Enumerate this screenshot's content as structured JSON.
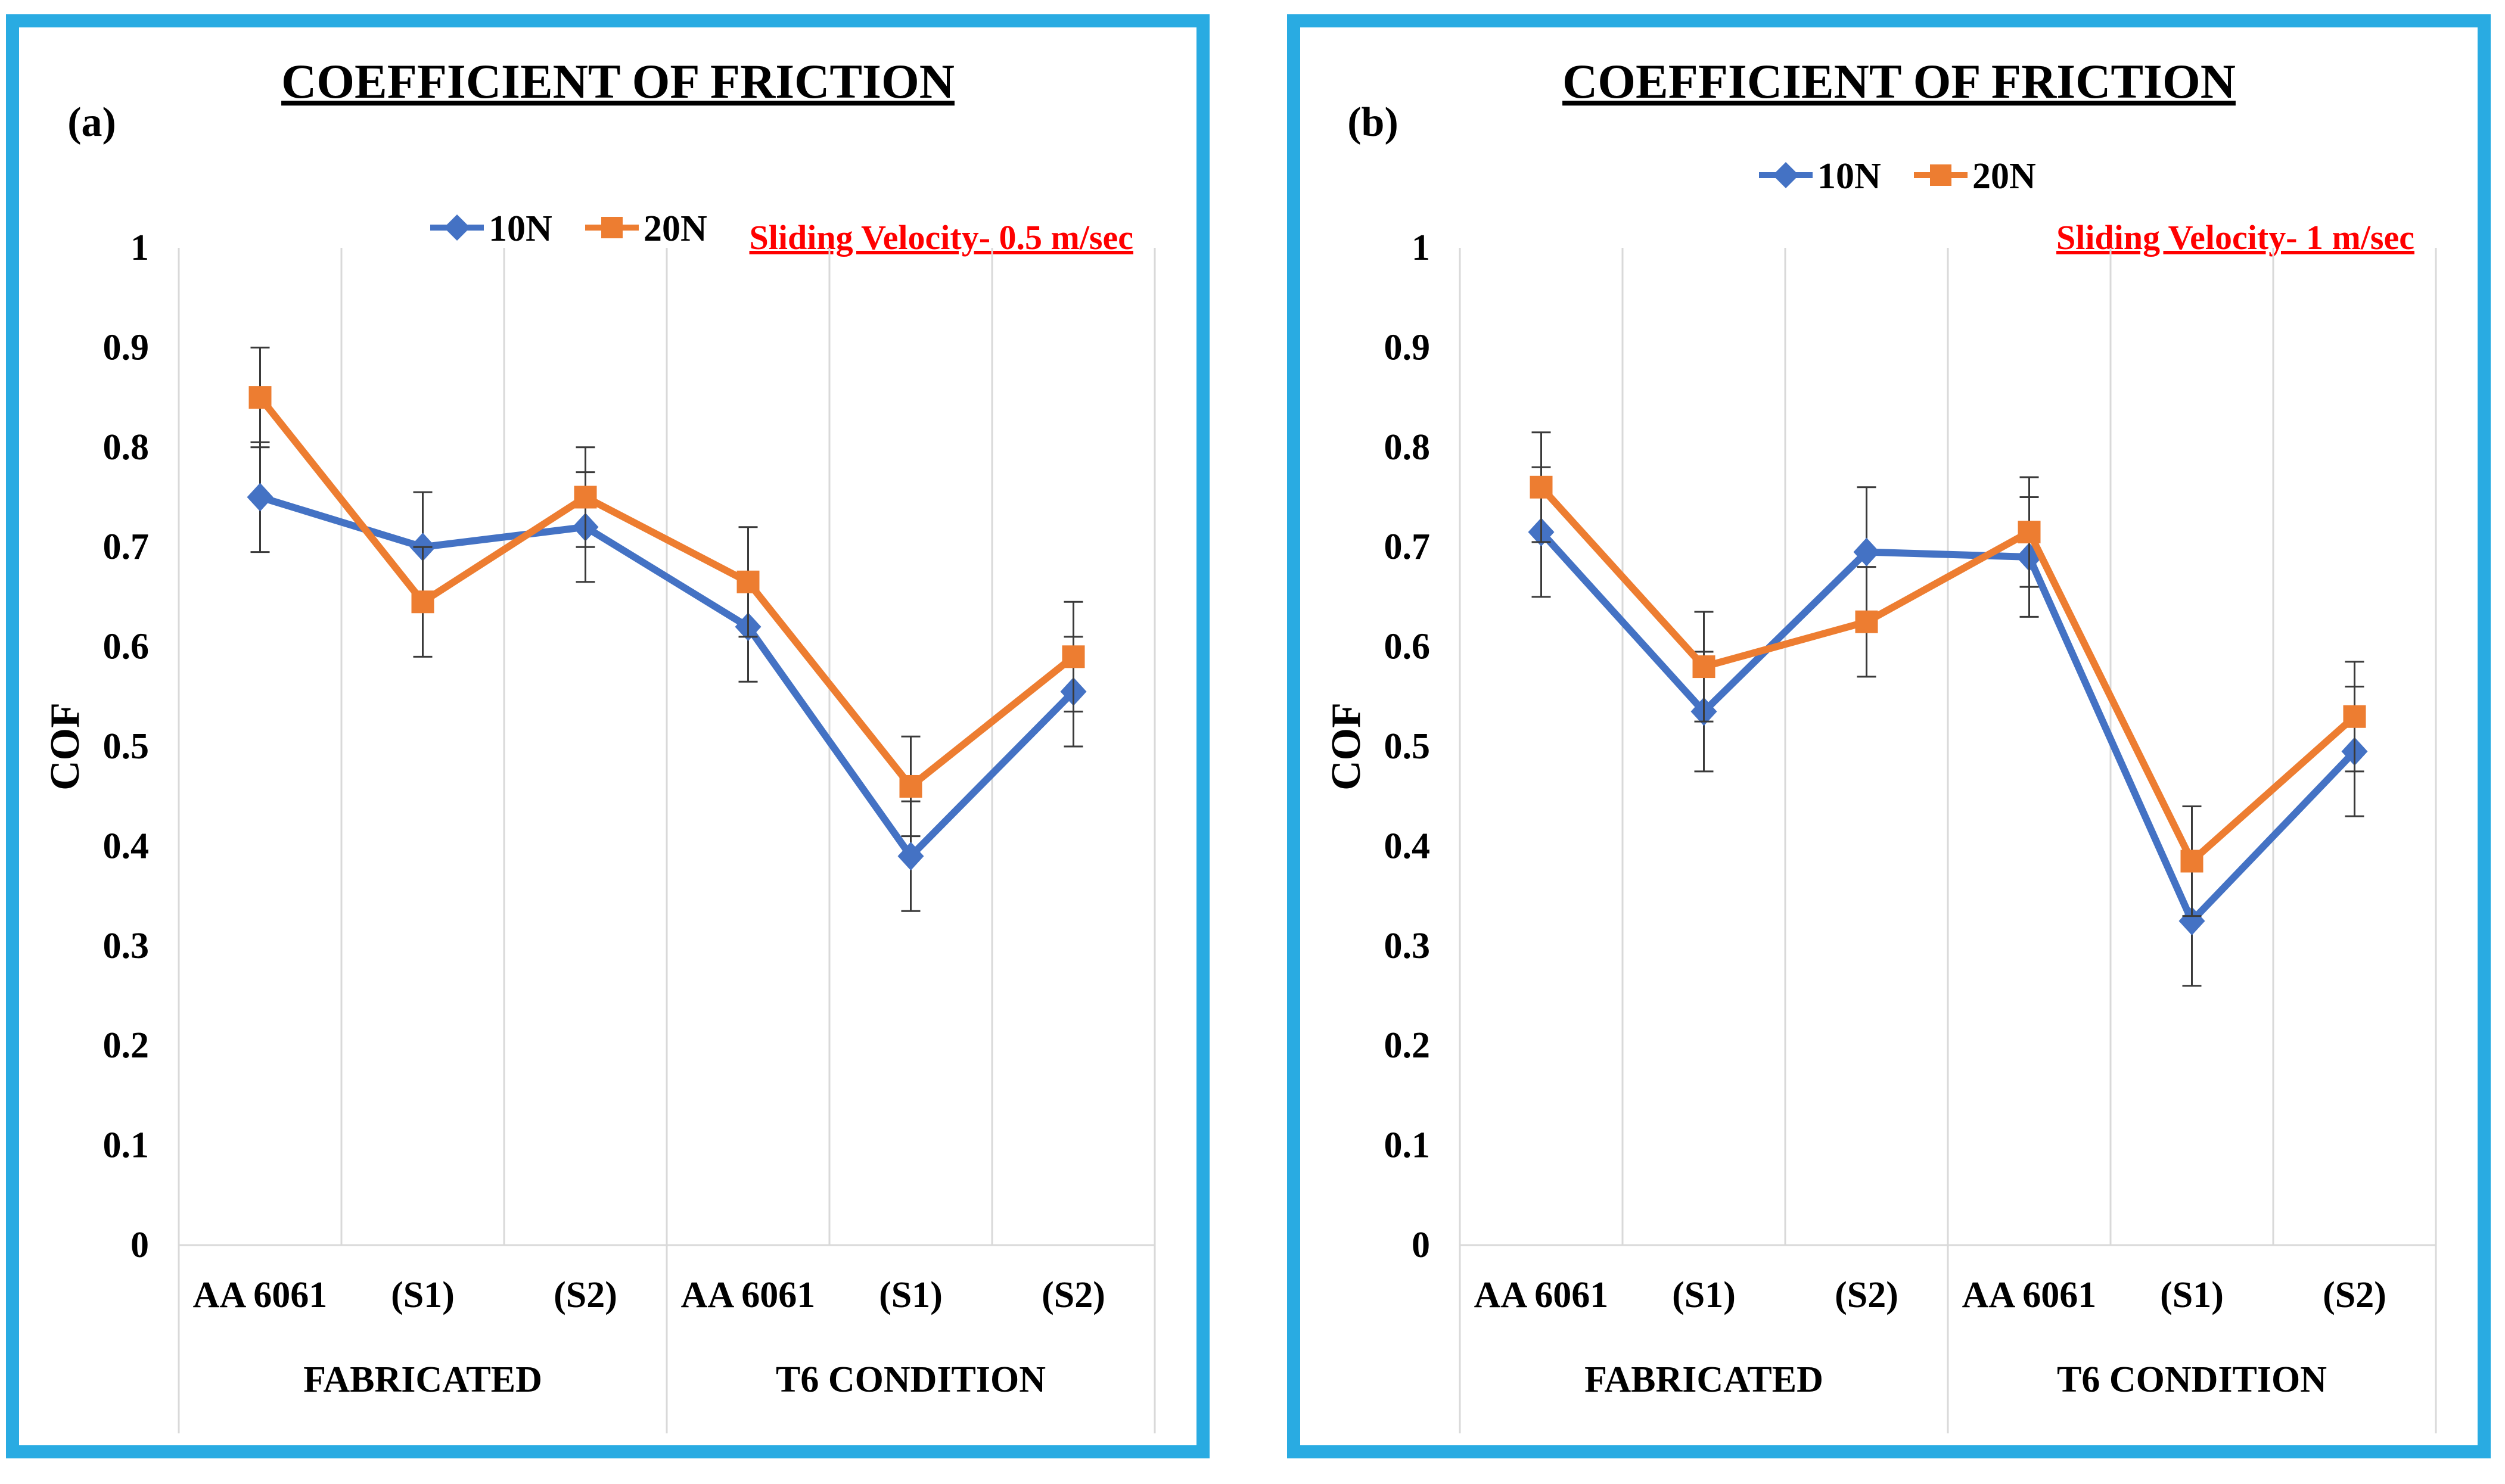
{
  "chart_data": [
    {
      "type": "line",
      "panel_label": "(a)",
      "title": "COEFFICIENT OF FRICTION",
      "ylabel": "COF",
      "xlabel": "",
      "ylim": [
        0,
        1
      ],
      "yticks": [
        "0",
        "0.1",
        "0.2",
        "0.3",
        "0.4",
        "0.5",
        "0.6",
        "0.7",
        "0.8",
        "0.9",
        "1"
      ],
      "categories": [
        "AA 6061",
        "(S1)",
        "(S2)",
        "AA 6061",
        "(S1)",
        "(S2)"
      ],
      "groups": [
        {
          "label": "FABRICATED",
          "span": [
            0,
            2
          ]
        },
        {
          "label": "T6 CONDITION",
          "span": [
            3,
            5
          ]
        }
      ],
      "annotation": "Sliding Velocity- 0.5 m/sec",
      "legend_position": "top-center",
      "grid": "vertical",
      "series": [
        {
          "name": "10N",
          "color": "#4472c4",
          "marker": "diamond",
          "values": [
            0.75,
            0.7,
            0.72,
            0.62,
            0.39,
            0.555
          ],
          "errors": [
            0.055,
            0.055,
            0.055,
            0.055,
            0.055,
            0.055
          ]
        },
        {
          "name": "20N",
          "color": "#ed7d31",
          "marker": "square",
          "values": [
            0.85,
            0.645,
            0.75,
            0.665,
            0.46,
            0.59
          ],
          "errors": [
            0.05,
            0.055,
            0.05,
            0.055,
            0.05,
            0.055
          ]
        }
      ]
    },
    {
      "type": "line",
      "panel_label": "(b)",
      "title": "COEFFICIENT OF FRICTION",
      "ylabel": "COF",
      "xlabel": "",
      "ylim": [
        0,
        1
      ],
      "yticks": [
        "0",
        "0.1",
        "0.2",
        "0.3",
        "0.4",
        "0.5",
        "0.6",
        "0.7",
        "0.8",
        "0.9",
        "1"
      ],
      "categories": [
        "AA 6061",
        "(S1)",
        "(S2)",
        "AA 6061",
        "(S1)",
        "(S2)"
      ],
      "groups": [
        {
          "label": "FABRICATED",
          "span": [
            0,
            2
          ]
        },
        {
          "label": "T6 CONDITION",
          "span": [
            3,
            5
          ]
        }
      ],
      "annotation": "Sliding Velocity- 1 m/sec",
      "legend_position": "top-center",
      "grid": "vertical",
      "series": [
        {
          "name": "10N",
          "color": "#4472c4",
          "marker": "diamond",
          "values": [
            0.715,
            0.535,
            0.695,
            0.69,
            0.325,
            0.495
          ],
          "errors": [
            0.065,
            0.06,
            0.065,
            0.06,
            0.065,
            0.065
          ]
        },
        {
          "name": "20N",
          "color": "#ed7d31",
          "marker": "square",
          "values": [
            0.76,
            0.58,
            0.625,
            0.715,
            0.385,
            0.53
          ],
          "errors": [
            0.055,
            0.055,
            0.055,
            0.055,
            0.055,
            0.055
          ]
        }
      ]
    }
  ]
}
